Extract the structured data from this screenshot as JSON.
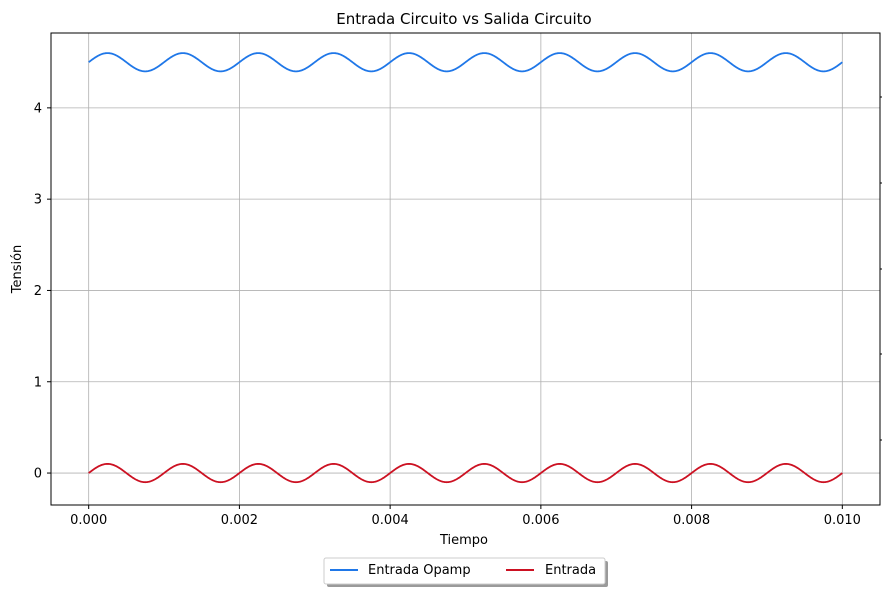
{
  "chart_data": {
    "type": "line",
    "title": "Entrada Circuito vs Salida Circuito",
    "xlabel": "Tiempo",
    "ylabel": "Tensión",
    "xlim": [
      -0.0005,
      0.0105
    ],
    "ylim": [
      -0.35,
      4.82
    ],
    "x_ticks": [
      0.0,
      0.002,
      0.004,
      0.006,
      0.008,
      0.01
    ],
    "x_tick_labels": [
      "0.000",
      "0.002",
      "0.004",
      "0.006",
      "0.008",
      "0.010"
    ],
    "y_ticks": [
      0,
      1,
      2,
      3,
      4
    ],
    "y_tick_labels": [
      "0",
      "1",
      "2",
      "3",
      "4"
    ],
    "grid": true,
    "legend_placement": "bottom-center",
    "x_start": 0.0,
    "x_end": 0.01,
    "frequency_hz": 1000,
    "series": [
      {
        "name": "Entrada Opamp",
        "color": "#1f77e8",
        "offset": 4.5,
        "amplitude": 0.1
      },
      {
        "name": "Entrada",
        "color": "#cc1122",
        "offset": 0.0,
        "amplitude": 0.1
      }
    ]
  }
}
